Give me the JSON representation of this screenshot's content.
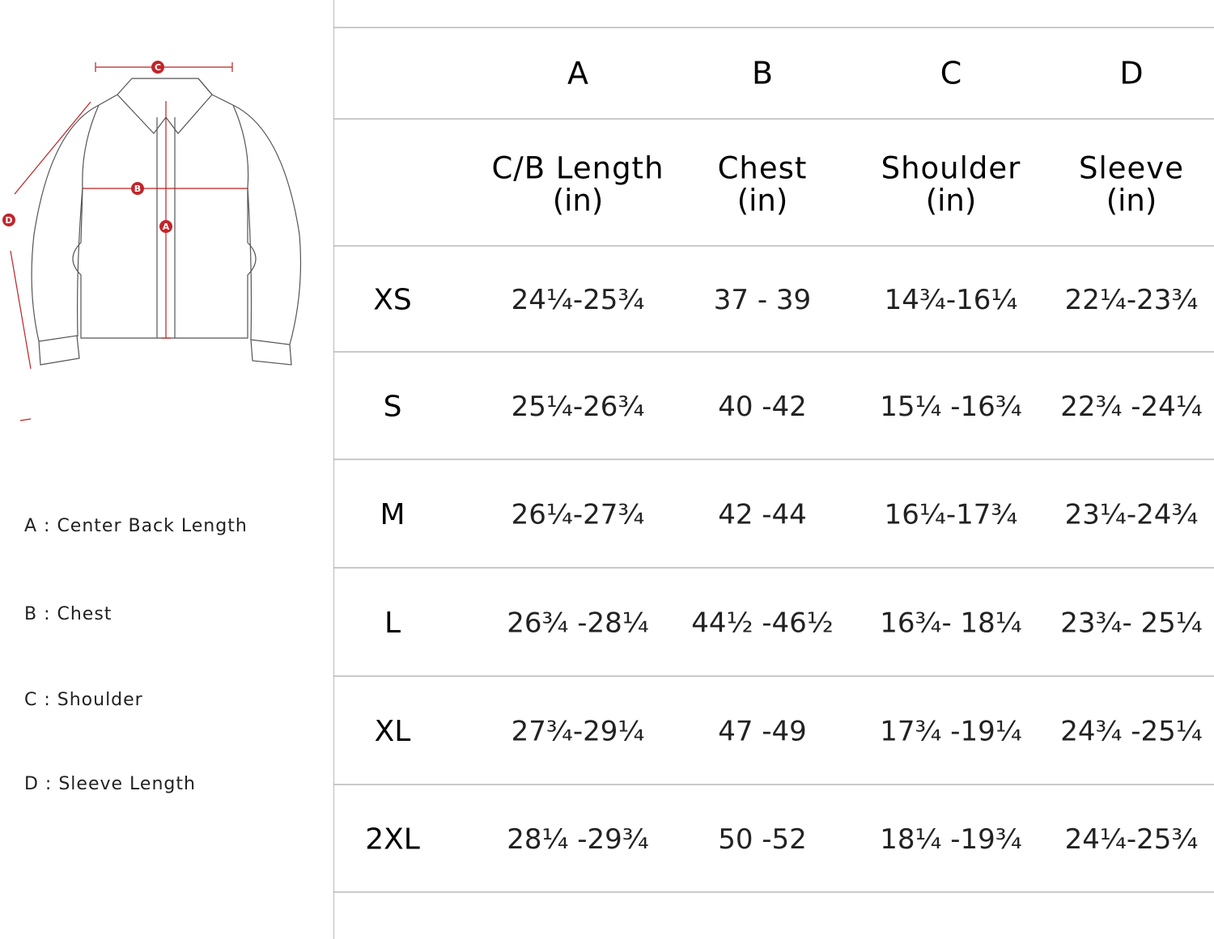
{
  "diagram": {
    "markers": [
      "C",
      "B",
      "A",
      "D"
    ]
  },
  "legend": [
    "A : Center Back Length",
    "B : Chest",
    "C : Shoulder",
    "D : Sleeve Length"
  ],
  "table": {
    "columns": [
      {
        "letter": "A",
        "label": "C/B Length",
        "unit": "(in)"
      },
      {
        "letter": "B",
        "label": "Chest",
        "unit": "(in)"
      },
      {
        "letter": "C",
        "label": "Shoulder",
        "unit": "(in)"
      },
      {
        "letter": "D",
        "label": "Sleeve",
        "unit": "(in)"
      }
    ],
    "rows": [
      {
        "size": "XS",
        "values": [
          "24¼-25¾",
          "37 - 39",
          "14¾-16¼",
          "22¼-23¾"
        ]
      },
      {
        "size": "S",
        "values": [
          "25¼-26¾",
          "40 -42",
          "15¼ -16¾",
          "22¾ -24¼"
        ]
      },
      {
        "size": "M",
        "values": [
          "26¼-27¾",
          "42 -44",
          "16¼-17¾",
          "23¼-24¾"
        ]
      },
      {
        "size": "L",
        "values": [
          "26¾ -28¼",
          "44½ -46½",
          "16¾- 18¼",
          "23¾- 25¼"
        ]
      },
      {
        "size": "XL",
        "values": [
          "27¾-29¼",
          "47 -49",
          "17¾ -19¼",
          "24¾ -25¼"
        ]
      },
      {
        "size": "2XL",
        "values": [
          "28¼ -29¾",
          "50 -52",
          "18¼ -19¾",
          "24¼-25¾"
        ]
      }
    ]
  }
}
